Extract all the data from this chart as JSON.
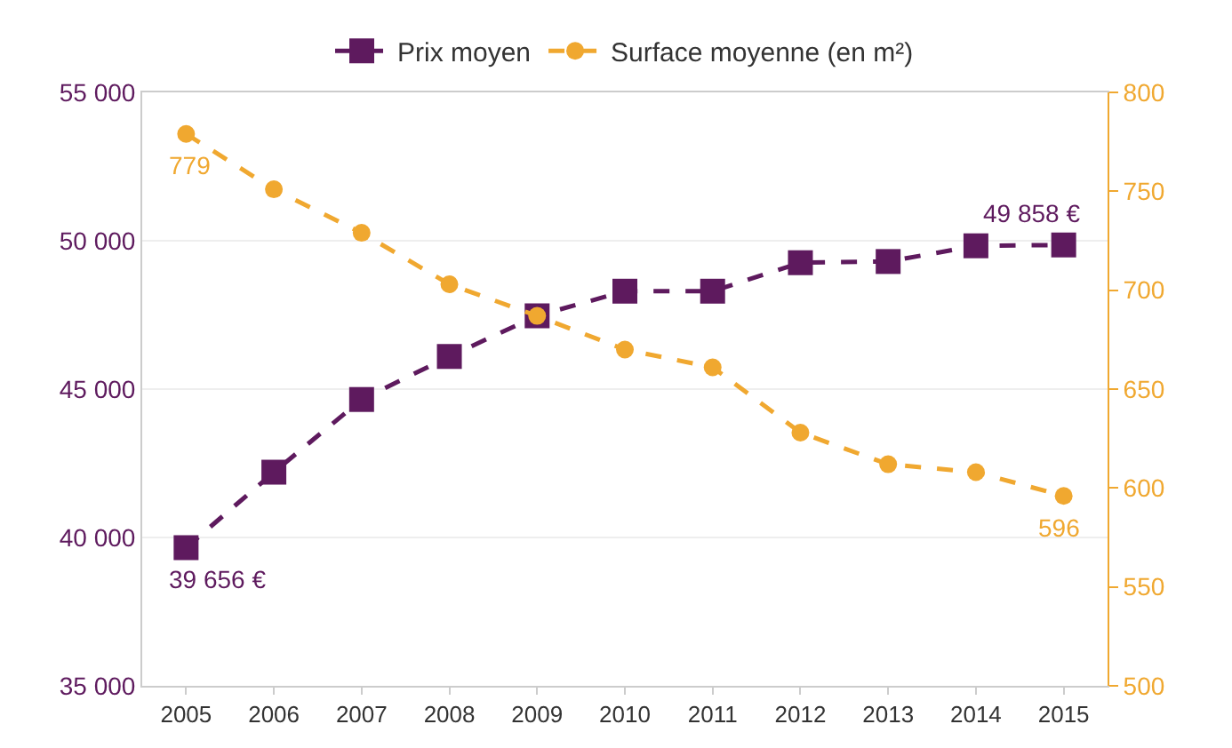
{
  "chart_data": {
    "type": "line",
    "categories": [
      "2005",
      "2006",
      "2007",
      "2008",
      "2009",
      "2010",
      "2011",
      "2012",
      "2013",
      "2014",
      "2015"
    ],
    "series": [
      {
        "name": "Prix moyen",
        "color": "#5e1a5e",
        "marker": "square",
        "values": [
          39656,
          42200,
          44650,
          46100,
          47470,
          48300,
          48300,
          49260,
          49300,
          49830,
          49858
        ],
        "value_labels": [
          "39 656 €",
          null,
          null,
          null,
          null,
          null,
          null,
          null,
          null,
          null,
          "49 858 €"
        ]
      },
      {
        "name": "Surface moyenne (en m²)",
        "color": "#f0a830",
        "marker": "circle",
        "axis": "y2",
        "values": [
          779,
          751,
          729,
          703,
          687,
          670,
          661,
          628,
          612,
          608,
          596
        ],
        "value_labels": [
          "779",
          null,
          null,
          null,
          null,
          null,
          null,
          null,
          null,
          null,
          "596"
        ]
      }
    ],
    "ylim": [
      35000,
      55000
    ],
    "yticks": [
      {
        "value": 35000,
        "label": "35 000"
      },
      {
        "value": 40000,
        "label": "40 000"
      },
      {
        "value": 45000,
        "label": "45 000"
      },
      {
        "value": 50000,
        "label": "50 000"
      },
      {
        "value": 55000,
        "label": "55 000"
      }
    ],
    "y2lim": [
      500,
      800
    ],
    "y2ticks": [
      500,
      550,
      600,
      650,
      700,
      750,
      800
    ],
    "line_style": "dashed",
    "grid": "y",
    "legend": "top"
  }
}
